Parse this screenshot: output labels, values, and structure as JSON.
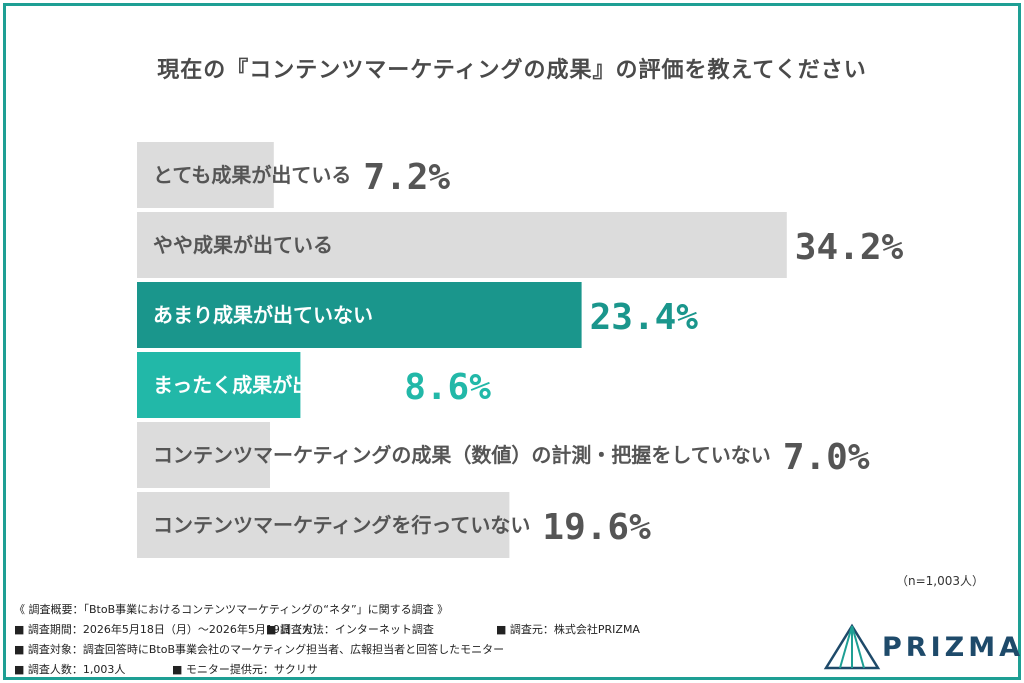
{
  "title": "現在の『コンテンツマーケティングの成果』の評価を教えてください",
  "chart_data": {
    "type": "bar",
    "orientation": "horizontal",
    "categories": [
      "とても成果が出ている",
      "やや成果が出ている",
      "あまり成果が出ていない",
      "まったく成果が出ていない",
      "コンテンツマーケティングの成果（数値）の計測・把握をしていない",
      "コンテンツマーケティングを行っていない"
    ],
    "values": [
      7.2,
      34.2,
      23.4,
      8.6,
      7.0,
      19.6
    ],
    "value_labels": [
      "7.2%",
      "34.2%",
      "23.4%",
      "8.6%",
      "7.0%",
      "19.6%"
    ],
    "colors": [
      "#dcdcdc",
      "#dcdcdc",
      "#1a968c",
      "#22b8a8",
      "#dcdcdc",
      "#dcdcdc"
    ],
    "highlighted": [
      false,
      false,
      true,
      true,
      false,
      false
    ],
    "xlim": [
      0,
      100
    ],
    "grid": false,
    "legend": "none"
  },
  "sample_note": "（n=1,003人）",
  "footer": {
    "survey_title": "《 調査概要：「BtoB事業におけるコンテンツマーケティングの“ネタ”」に関する調査 》",
    "period": "■ 調査期間：2026年5月18日（月）〜2026年5月19日（火）",
    "method": "■ 調査方法：インターネット調査",
    "source": "■ 調査元：株式会社PRIZMA",
    "target": "■ 調査対象：調査回答時にBtoB事業会社のマーケティング担当者、広報担当者と回答したモニター",
    "count": "■ 調査人数：1,003人",
    "monitor": "■ モニター提供元：サクリサ"
  },
  "logo": {
    "text": "PRIZMA",
    "color": "#1e4a6a",
    "accent": "#1e9f94"
  }
}
